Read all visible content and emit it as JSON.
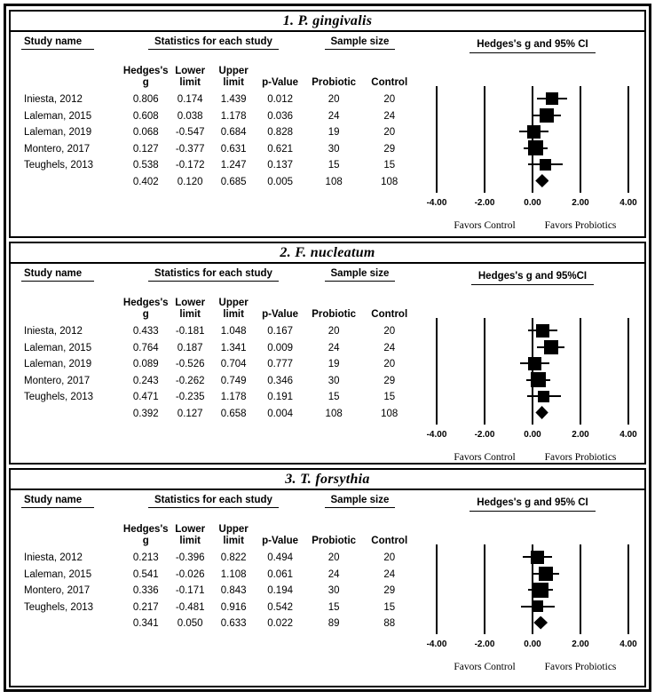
{
  "figure": {
    "table_headers": {
      "study": "Study name",
      "stats_group": "Statistics for each study",
      "sample_group": "Sample size",
      "g": "Hedges's g",
      "lower": "Lower limit",
      "upper": "Upper limit",
      "p": "p-Value",
      "probiotic": "Probiotic",
      "control": "Control"
    },
    "axis_tick_labels": [
      "-4.00",
      "-2.00",
      "0.00",
      "2.00",
      "4.00"
    ],
    "favors_left": "Favors Control",
    "favors_right": "Favors Probiotics",
    "colors": {
      "ink": "#000000",
      "background": "#ffffff"
    }
  },
  "chart_data": [
    {
      "type": "scatter",
      "subtype": "forest-plot",
      "title": "1. P. gingivalis",
      "plot_header": "Hedges's g and 95% CI",
      "xlim": [
        -4.5,
        4.5
      ],
      "xticks": [
        -4,
        -2,
        0,
        2,
        4
      ],
      "grid": "vertical-reference-lines",
      "studies": [
        {
          "name": "Iniesta, 2012",
          "g": 0.806,
          "lower": 0.174,
          "upper": 1.439,
          "p": 0.012,
          "n_probiotic": 20,
          "n_control": 20
        },
        {
          "name": "Laleman, 2015",
          "g": 0.608,
          "lower": 0.038,
          "upper": 1.178,
          "p": 0.036,
          "n_probiotic": 24,
          "n_control": 24
        },
        {
          "name": "Laleman, 2019",
          "g": 0.068,
          "lower": -0.547,
          "upper": 0.684,
          "p": 0.828,
          "n_probiotic": 19,
          "n_control": 20
        },
        {
          "name": "Montero, 2017",
          "g": 0.127,
          "lower": -0.377,
          "upper": 0.631,
          "p": 0.621,
          "n_probiotic": 30,
          "n_control": 29
        },
        {
          "name": "Teughels, 2013",
          "g": 0.538,
          "lower": -0.172,
          "upper": 1.247,
          "p": 0.137,
          "n_probiotic": 15,
          "n_control": 15
        }
      ],
      "summary": {
        "g": 0.402,
        "lower": 0.12,
        "upper": 0.685,
        "p": 0.005,
        "n_probiotic": 108,
        "n_control": 108
      }
    },
    {
      "type": "scatter",
      "subtype": "forest-plot",
      "title": "2. F. nucleatum",
      "plot_header": "Hedges's g and 95%CI",
      "xlim": [
        -4.5,
        4.5
      ],
      "xticks": [
        -4,
        -2,
        0,
        2,
        4
      ],
      "grid": "vertical-reference-lines",
      "studies": [
        {
          "name": "Iniesta, 2012",
          "g": 0.433,
          "lower": -0.181,
          "upper": 1.048,
          "p": 0.167,
          "n_probiotic": 20,
          "n_control": 20
        },
        {
          "name": "Laleman, 2015",
          "g": 0.764,
          "lower": 0.187,
          "upper": 1.341,
          "p": 0.009,
          "n_probiotic": 24,
          "n_control": 24
        },
        {
          "name": "Laleman, 2019",
          "g": 0.089,
          "lower": -0.526,
          "upper": 0.704,
          "p": 0.777,
          "n_probiotic": 19,
          "n_control": 20
        },
        {
          "name": "Montero, 2017",
          "g": 0.243,
          "lower": -0.262,
          "upper": 0.749,
          "p": 0.346,
          "n_probiotic": 30,
          "n_control": 29
        },
        {
          "name": "Teughels, 2013",
          "g": 0.471,
          "lower": -0.235,
          "upper": 1.178,
          "p": 0.191,
          "n_probiotic": 15,
          "n_control": 15
        }
      ],
      "summary": {
        "g": 0.392,
        "lower": 0.127,
        "upper": 0.658,
        "p": 0.004,
        "n_probiotic": 108,
        "n_control": 108
      }
    },
    {
      "type": "scatter",
      "subtype": "forest-plot",
      "title": "3. T. forsythia",
      "plot_header": "Hedges's g and 95% CI",
      "xlim": [
        -4.5,
        4.5
      ],
      "xticks": [
        -4,
        -2,
        0,
        2,
        4
      ],
      "grid": "vertical-reference-lines",
      "studies": [
        {
          "name": "Iniesta, 2012",
          "g": 0.213,
          "lower": -0.396,
          "upper": 0.822,
          "p": 0.494,
          "n_probiotic": 20,
          "n_control": 20
        },
        {
          "name": "Laleman, 2015",
          "g": 0.541,
          "lower": -0.026,
          "upper": 1.108,
          "p": 0.061,
          "n_probiotic": 24,
          "n_control": 24
        },
        {
          "name": "Montero, 2017",
          "g": 0.336,
          "lower": -0.171,
          "upper": 0.843,
          "p": 0.194,
          "n_probiotic": 30,
          "n_control": 29
        },
        {
          "name": "Teughels, 2013",
          "g": 0.217,
          "lower": -0.481,
          "upper": 0.916,
          "p": 0.542,
          "n_probiotic": 15,
          "n_control": 15
        }
      ],
      "summary": {
        "g": 0.341,
        "lower": 0.05,
        "upper": 0.633,
        "p": 0.022,
        "n_probiotic": 89,
        "n_control": 88
      }
    }
  ]
}
